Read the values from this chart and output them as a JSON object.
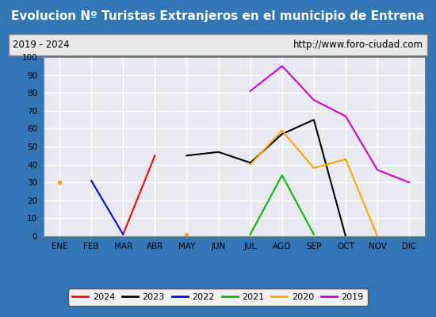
{
  "title": "Evolucion Nº Turistas Extranjeros en el municipio de Entrena",
  "subtitle_left": "2019 - 2024",
  "subtitle_right": "http://www.foro-ciudad.com",
  "months": [
    "ENE",
    "FEB",
    "MAR",
    "ABR",
    "MAY",
    "JUN",
    "JUL",
    "AGO",
    "SEP",
    "OCT",
    "NOV",
    "DIC"
  ],
  "ylim": [
    0,
    100
  ],
  "yticks": [
    0,
    10,
    20,
    30,
    40,
    50,
    60,
    70,
    80,
    90,
    100
  ],
  "series": {
    "2024": {
      "color": "#ff0000",
      "data": [
        null,
        null,
        1,
        45,
        null,
        null,
        null,
        null,
        null,
        null,
        null,
        null
      ]
    },
    "2023": {
      "color": "#000000",
      "data": [
        null,
        null,
        null,
        null,
        45,
        47,
        41,
        57,
        65,
        0,
        null,
        null
      ]
    },
    "2022": {
      "color": "#0000ff",
      "data": [
        null,
        31,
        1,
        null,
        null,
        null,
        null,
        null,
        null,
        null,
        null,
        null
      ]
    },
    "2021": {
      "color": "#00bb00",
      "data": [
        null,
        null,
        null,
        null,
        null,
        null,
        1,
        34,
        1,
        null,
        null,
        null
      ]
    },
    "2020": {
      "color": "#ffa500",
      "data": [
        30,
        null,
        null,
        null,
        1,
        null,
        40,
        59,
        38,
        43,
        0,
        null
      ]
    },
    "2019": {
      "color": "#cc00cc",
      "data": [
        null,
        null,
        null,
        null,
        null,
        null,
        81,
        95,
        76,
        67,
        37,
        30
      ]
    }
  },
  "legend_order": [
    "2024",
    "2023",
    "2022",
    "2021",
    "2020",
    "2019"
  ],
  "title_bg_color": "#3376b8",
  "title_text_color": "#ffffff",
  "subtitle_bg_color": "#e8e8e8",
  "plot_bg_color": "#e8e8f0",
  "grid_color": "#ffffff",
  "border_color": "#888888",
  "fig_bg_color": "#3376b8"
}
